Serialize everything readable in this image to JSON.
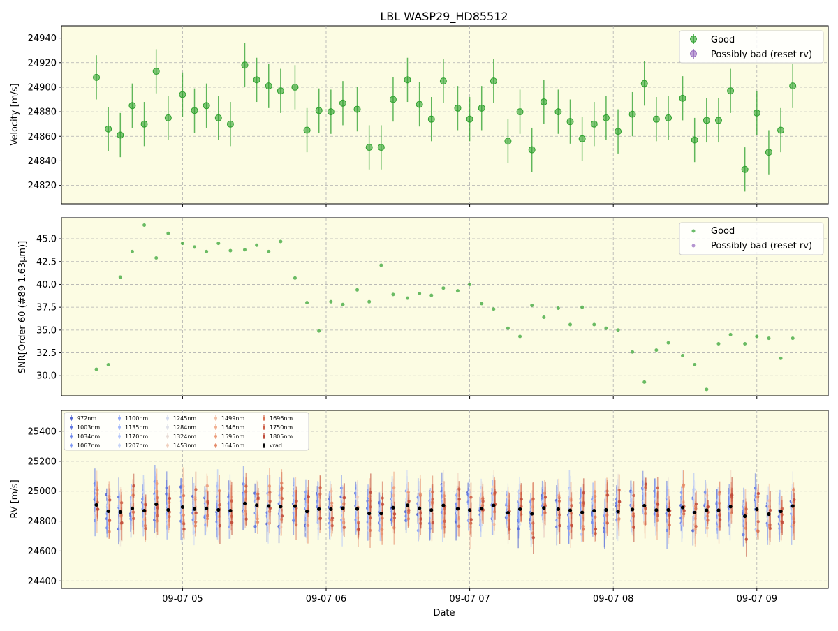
{
  "chart_data": [
    {
      "type": "scatter",
      "title": "LBL WASP29_HD85512",
      "ylabel": "Velocity [m/s]",
      "ylim": [
        24805,
        24950
      ],
      "y_ticks": [
        24820,
        24840,
        24860,
        24880,
        24900,
        24920,
        24940
      ],
      "grid": true,
      "legend_position": "top-right",
      "legend": [
        "Good",
        "Possibly bad (reset rv)"
      ],
      "series": [
        {
          "name": "Good",
          "color": "#2ca02c",
          "x": [
            "09-07 04:24",
            "09-07 04:29",
            "09-07 04:34",
            "09-07 04:39",
            "09-07 04:44",
            "09-07 04:49",
            "09-07 04:54",
            "09-07 05:00",
            "09-07 05:05",
            "09-07 05:10",
            "09-07 05:15",
            "09-07 05:20",
            "09-07 05:26",
            "09-07 05:31",
            "09-07 05:36",
            "09-07 05:41",
            "09-07 05:47",
            "09-07 05:52",
            "09-07 05:57",
            "09-07 06:02",
            "09-07 06:07",
            "09-07 06:13",
            "09-07 06:18",
            "09-07 06:23",
            "09-07 06:28",
            "09-07 06:34",
            "09-07 06:39",
            "09-07 06:44",
            "09-07 06:49",
            "09-07 06:55",
            "09-07 07:00",
            "09-07 07:05",
            "09-07 07:10",
            "09-07 07:16",
            "09-07 07:21",
            "09-07 07:26",
            "09-07 07:31",
            "09-07 07:37",
            "09-07 07:42",
            "09-07 07:47",
            "09-07 07:52",
            "09-07 07:57",
            "09-07 08:02",
            "09-07 08:08",
            "09-07 08:13",
            "09-07 08:18",
            "09-07 08:23",
            "09-07 08:29",
            "09-07 08:34",
            "09-07 08:39",
            "09-07 08:44",
            "09-07 08:49",
            "09-07 08:55",
            "09-07 09:00",
            "09-07 09:05",
            "09-07 09:10",
            "09-07 09:15"
          ],
          "y": [
            24908,
            24866,
            24861,
            24885,
            24870,
            24913,
            24875,
            24894,
            24881,
            24885,
            24875,
            24870,
            24918,
            24906,
            24901,
            24897,
            24900,
            24865,
            24881,
            24880,
            24887,
            24882,
            24851,
            24851,
            24890,
            24906,
            24886,
            24874,
            24905,
            24883,
            24874,
            24883,
            24905,
            24856,
            24880,
            24849,
            24888,
            24880,
            24872,
            24858,
            24870,
            24875,
            24864,
            24878,
            24903,
            24874,
            24875,
            24891,
            24857,
            24873,
            24873,
            24897,
            24833,
            24879,
            24847,
            24865,
            24901
          ],
          "yerr": 18
        },
        {
          "name": "Possibly bad (reset rv)",
          "color": "#9467bd",
          "x": [],
          "y": []
        }
      ]
    },
    {
      "type": "scatter",
      "ylabel": "SNR[Order 60 (#89 1.63μm)]",
      "ylim": [
        27.8,
        47.3
      ],
      "y_ticks": [
        "30.0",
        "32.5",
        "35.0",
        "37.5",
        "40.0",
        "42.5",
        "45.0"
      ],
      "grid": true,
      "legend_position": "top-right",
      "legend": [
        "Good",
        "Possibly bad (reset rv)"
      ],
      "series": [
        {
          "name": "Good",
          "color": "#2ca02c",
          "y": [
            30.7,
            31.2,
            40.8,
            43.6,
            46.5,
            42.9,
            45.6,
            44.5,
            44.1,
            43.6,
            44.5,
            43.7,
            43.8,
            44.3,
            43.6,
            44.7,
            40.7,
            38.0,
            34.9,
            38.1,
            37.8,
            39.4,
            38.1,
            42.1,
            38.9,
            38.5,
            39.0,
            38.8,
            39.6,
            39.3,
            40.0,
            37.9,
            37.3,
            35.2,
            34.3,
            37.7,
            36.4,
            37.4,
            35.6,
            37.5,
            35.6,
            35.2,
            35.0,
            32.6,
            29.3,
            32.8,
            33.6,
            32.2,
            31.2,
            28.5,
            33.5,
            34.5,
            33.5,
            34.3,
            34.1,
            31.9,
            34.1
          ]
        },
        {
          "name": "Possibly bad (reset rv)",
          "color": "#9467bd",
          "y": []
        }
      ]
    },
    {
      "type": "scatter",
      "xlabel": "Date",
      "ylabel": "RV [m/s]",
      "ylim": [
        24350,
        25540
      ],
      "y_ticks": [
        24400,
        24600,
        24800,
        25000,
        25200,
        25400
      ],
      "x_ticks": [
        "09-07 05",
        "09-07 06",
        "09-07 07",
        "09-07 08",
        "09-07 09"
      ],
      "grid": true,
      "legend_position": "top-left",
      "legend": [
        "972nm",
        "1003nm",
        "1034nm",
        "1067nm",
        "1100nm",
        "1135nm",
        "1170nm",
        "1207nm",
        "1245nm",
        "1284nm",
        "1324nm",
        "1453nm",
        "1499nm",
        "1546nm",
        "1595nm",
        "1645nm",
        "1696nm",
        "1750nm",
        "1805nm",
        "vrad"
      ],
      "band_colors": [
        "#4a5fd0",
        "#5b73e0",
        "#6c86ec",
        "#7f98f3",
        "#92aaf8",
        "#a4b9fa",
        "#b6c8fb",
        "#c6d4f8",
        "#d4dcf0",
        "#e0e2ea",
        "#e8dcd6",
        "#f0cfbd",
        "#f2c0a6",
        "#f1af90",
        "#ec9c7a",
        "#e48866",
        "#d97355",
        "#cd5e45",
        "#bf4a38"
      ],
      "vrad_color": "#000000",
      "vrad": [
        24908,
        24866,
        24861,
        24885,
        24870,
        24913,
        24875,
        24894,
        24881,
        24885,
        24875,
        24870,
        24918,
        24906,
        24901,
        24897,
        24900,
        24865,
        24881,
        24880,
        24887,
        24882,
        24851,
        24851,
        24890,
        24906,
        24886,
        24874,
        24905,
        24883,
        24874,
        24883,
        24905,
        24856,
        24880,
        24849,
        24888,
        24880,
        24872,
        24858,
        24870,
        24875,
        24864,
        24878,
        24903,
        24874,
        24875,
        24891,
        24857,
        24873,
        24873,
        24897,
        24833,
        24879,
        24847,
        24865,
        24901
      ]
    }
  ]
}
